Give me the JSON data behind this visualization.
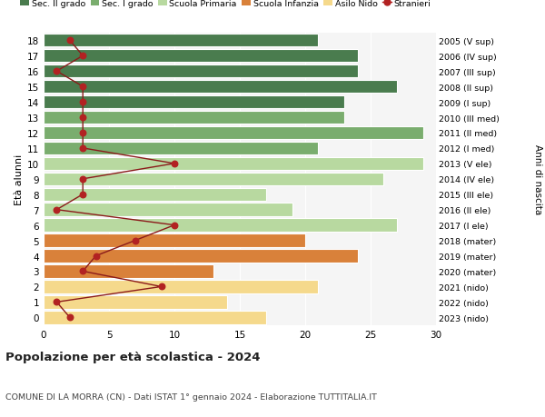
{
  "ages": [
    18,
    17,
    16,
    15,
    14,
    13,
    12,
    11,
    10,
    9,
    8,
    7,
    6,
    5,
    4,
    3,
    2,
    1,
    0
  ],
  "right_labels": [
    "2005 (V sup)",
    "2006 (IV sup)",
    "2007 (III sup)",
    "2008 (II sup)",
    "2009 (I sup)",
    "2010 (III med)",
    "2011 (II med)",
    "2012 (I med)",
    "2013 (V ele)",
    "2014 (IV ele)",
    "2015 (III ele)",
    "2016 (II ele)",
    "2017 (I ele)",
    "2018 (mater)",
    "2019 (mater)",
    "2020 (mater)",
    "2021 (nido)",
    "2022 (nido)",
    "2023 (nido)"
  ],
  "bar_values": [
    21,
    24,
    24,
    27,
    23,
    23,
    29,
    21,
    29,
    26,
    17,
    19,
    27,
    20,
    24,
    13,
    21,
    14,
    17
  ],
  "bar_colors": [
    "#4a7c4e",
    "#4a7c4e",
    "#4a7c4e",
    "#4a7c4e",
    "#4a7c4e",
    "#7aad6e",
    "#7aad6e",
    "#7aad6e",
    "#b8d9a0",
    "#b8d9a0",
    "#b8d9a0",
    "#b8d9a0",
    "#b8d9a0",
    "#d9813a",
    "#d9813a",
    "#d9813a",
    "#f5d98c",
    "#f5d98c",
    "#f5d98c"
  ],
  "stranieri_values": [
    2,
    3,
    1,
    3,
    3,
    3,
    3,
    3,
    10,
    3,
    3,
    1,
    10,
    7,
    4,
    3,
    9,
    1,
    2
  ],
  "legend_labels": [
    "Sec. II grado",
    "Sec. I grado",
    "Scuola Primaria",
    "Scuola Infanzia",
    "Asilo Nido",
    "Stranieri"
  ],
  "legend_colors": [
    "#4a7c4e",
    "#7aad6e",
    "#b8d9a0",
    "#d9813a",
    "#f5d98c",
    "#b22222"
  ],
  "title": "Popolazione per età scolastica - 2024",
  "subtitle": "COMUNE DI LA MORRA (CN) - Dati ISTAT 1° gennaio 2024 - Elaborazione TUTTITALIA.IT",
  "ylabel": "Età alunni",
  "anni_label": "Anni di nascita",
  "xlim": [
    0,
    30
  ],
  "ylim": [
    -0.5,
    18.5
  ],
  "xticks": [
    0,
    5,
    10,
    15,
    20,
    25,
    30
  ],
  "bg_color": "#ffffff",
  "plot_bg_color": "#f5f5f5"
}
